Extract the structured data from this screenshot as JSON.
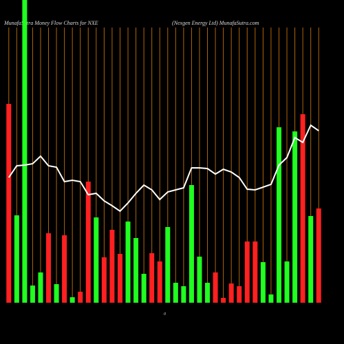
{
  "chart_data": {
    "type": "bar",
    "title": "MunafaSutra  Money Flow  Charts for NXE",
    "subtitle": "(Nexgen  Energy Ltd) MunafaSutra.com",
    "annotation": "0",
    "ylim": [
      0,
      440
    ],
    "values": [
      289,
      127,
      460,
      25,
      44,
      101,
      27,
      98,
      8,
      16,
      176,
      124,
      66,
      106,
      71,
      118,
      94,
      42,
      72,
      60,
      110,
      29,
      24,
      171,
      67,
      29,
      44,
      7,
      28,
      24,
      89,
      89,
      59,
      12,
      255,
      60,
      249,
      274,
      126,
      137
    ],
    "colors": [
      "#ff2020",
      "#20ff20",
      "#20ff20",
      "#20ff20",
      "#20ff20",
      "#ff2020",
      "#20ff20",
      "#ff2020",
      "#20ff20",
      "#ff2020",
      "#ff2020",
      "#20ff20",
      "#ff2020",
      "#ff2020",
      "#ff2020",
      "#20ff20",
      "#20ff20",
      "#20ff20",
      "#ff2020",
      "#ff2020",
      "#20ff20",
      "#20ff20",
      "#20ff20",
      "#20ff20",
      "#20ff20",
      "#20ff20",
      "#ff2020",
      "#ff2020",
      "#ff2020",
      "#ff2020",
      "#ff2020",
      "#ff2020",
      "#20ff20",
      "#20ff20",
      "#20ff20",
      "#20ff20",
      "#20ff20",
      "#ff2020",
      "#20ff20",
      "#ff2020"
    ],
    "line": {
      "color": "#ffffff",
      "values": [
        182,
        199,
        200,
        202,
        213,
        199,
        197,
        176,
        178,
        176,
        157,
        159,
        148,
        141,
        133,
        145,
        159,
        171,
        164,
        150,
        161,
        164,
        167,
        196,
        196,
        195,
        187,
        194,
        190,
        182,
        165,
        164,
        168,
        172,
        200,
        211,
        240,
        233,
        258,
        250
      ]
    },
    "gridline_color": "#b0660a"
  }
}
